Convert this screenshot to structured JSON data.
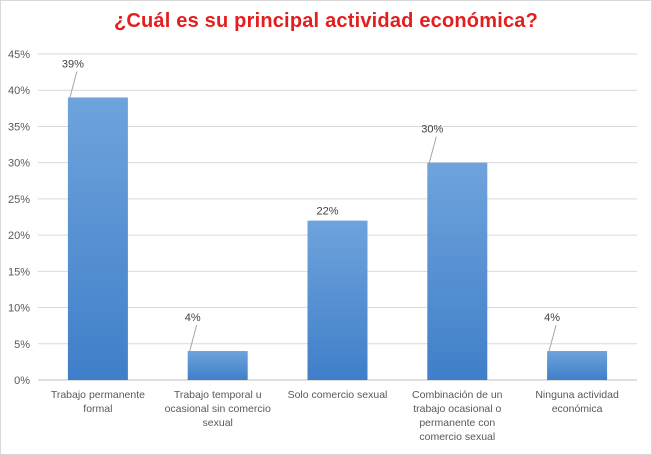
{
  "chart_data": {
    "type": "bar",
    "title": "¿Cuál es su principal  actividad  económica?",
    "categories": [
      [
        "Trabajo permanente",
        "formal"
      ],
      [
        "Trabajo temporal u",
        "ocasional sin comercio",
        "sexual"
      ],
      [
        "Solo comercio sexual"
      ],
      [
        "Combinación de un",
        "trabajo ocasional o",
        "permanente con",
        "comercio sexual"
      ],
      [
        "Ninguna actividad",
        "económica"
      ]
    ],
    "values": [
      39,
      4,
      22,
      30,
      4
    ],
    "data_labels": [
      "39%",
      "4%",
      "22%",
      "30%",
      "4%"
    ],
    "yticks": [
      "0%",
      "5%",
      "10%",
      "15%",
      "20%",
      "25%",
      "30%",
      "35%",
      "40%",
      "45%"
    ],
    "ylim": [
      0,
      45
    ],
    "grid": true,
    "colors": {
      "bar_top": "#6fa3dc",
      "bar_bottom": "#3f7fc9",
      "title": "#e31e1e"
    }
  }
}
